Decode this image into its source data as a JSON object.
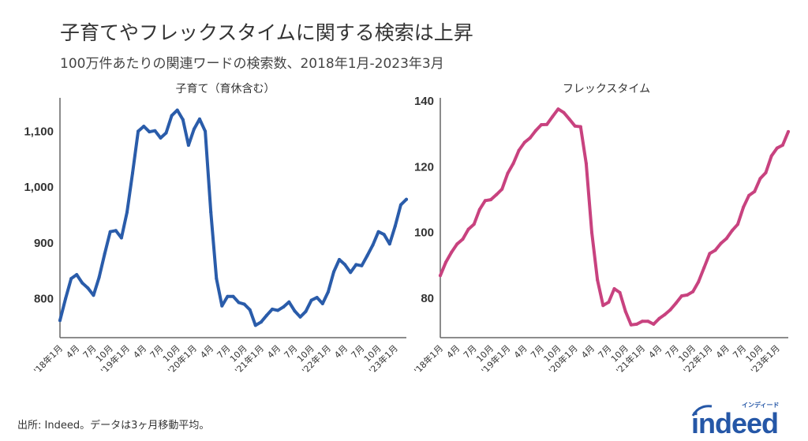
{
  "title": "子育てやフレックスタイムに関する検索は上昇",
  "subtitle": "100万件あたりの関連ワードの検索数、2018年1月-2023年3月",
  "source": "出所: Indeed。データは3ヶ月移動平均。",
  "logo": {
    "text": "indeed",
    "kana": "インディード",
    "color": "#2557a7"
  },
  "chart_data": [
    {
      "type": "line",
      "title": "子育て（育休含む）",
      "color": "#2a5caa",
      "ylim": [
        730,
        1160
      ],
      "yticks": [
        800,
        900,
        1000,
        1100
      ],
      "ytick_labels": [
        "800",
        "900",
        "1,000",
        "1,100"
      ],
      "xtick_labels": [
        "'18年1月",
        "4月",
        "7月",
        "10月",
        "'19年1月",
        "4月",
        "7月",
        "10月",
        "'20年1月",
        "4月",
        "7月",
        "10月",
        "'21年1月",
        "4月",
        "7月",
        "10月",
        "'22年1月",
        "4月",
        "7月",
        "10月",
        "'23年1月"
      ],
      "x_start": "2018-01",
      "x_end": "2023-03",
      "values": [
        761,
        800,
        836,
        843,
        828,
        819,
        806,
        838,
        880,
        920,
        922,
        909,
        955,
        1025,
        1100,
        1109,
        1099,
        1101,
        1088,
        1097,
        1128,
        1138,
        1121,
        1075,
        1104,
        1122,
        1100,
        955,
        836,
        787,
        804,
        804,
        793,
        790,
        780,
        752,
        758,
        770,
        781,
        779,
        785,
        794,
        778,
        767,
        777,
        797,
        802,
        791,
        812,
        848,
        870,
        861,
        847,
        861,
        859,
        877,
        896,
        920,
        915,
        898,
        930,
        968,
        978
      ]
    },
    {
      "type": "line",
      "title": "フレックスタイム",
      "color": "#c8427f",
      "ylim": [
        68,
        141
      ],
      "yticks": [
        80,
        100,
        120,
        140
      ],
      "ytick_labels": [
        "80",
        "100",
        "120",
        "140"
      ],
      "xtick_labels": [
        "'18年1月",
        "4月",
        "7月",
        "10月",
        "'19年1月",
        "4月",
        "7月",
        "10月",
        "'20年1月",
        "4月",
        "7月",
        "10月",
        "'21年1月",
        "4月",
        "7月",
        "10月",
        "'22年1月",
        "4月",
        "7月",
        "10月",
        "'23年1月"
      ],
      "x_start": "2018-01",
      "x_end": "2023-03",
      "values": [
        86.9,
        91,
        94,
        96.5,
        98,
        101,
        102.5,
        107,
        109.7,
        110,
        111.5,
        113.2,
        118,
        121,
        125,
        127.4,
        128.8,
        131,
        132.8,
        132.9,
        135.3,
        137.6,
        136.5,
        134.5,
        132.4,
        132.2,
        121,
        100,
        85.5,
        77.8,
        78.8,
        82.9,
        81.7,
        76,
        71.9,
        72.1,
        73,
        73,
        72.1,
        73.8,
        75,
        76.5,
        78.5,
        80.7,
        81,
        82,
        85,
        89.3,
        93.6,
        94.6,
        96.7,
        98.2,
        100.6,
        102.5,
        107.7,
        111.3,
        112.5,
        116.4,
        118.2,
        123.3,
        125.7,
        126.6,
        130.7
      ]
    }
  ]
}
